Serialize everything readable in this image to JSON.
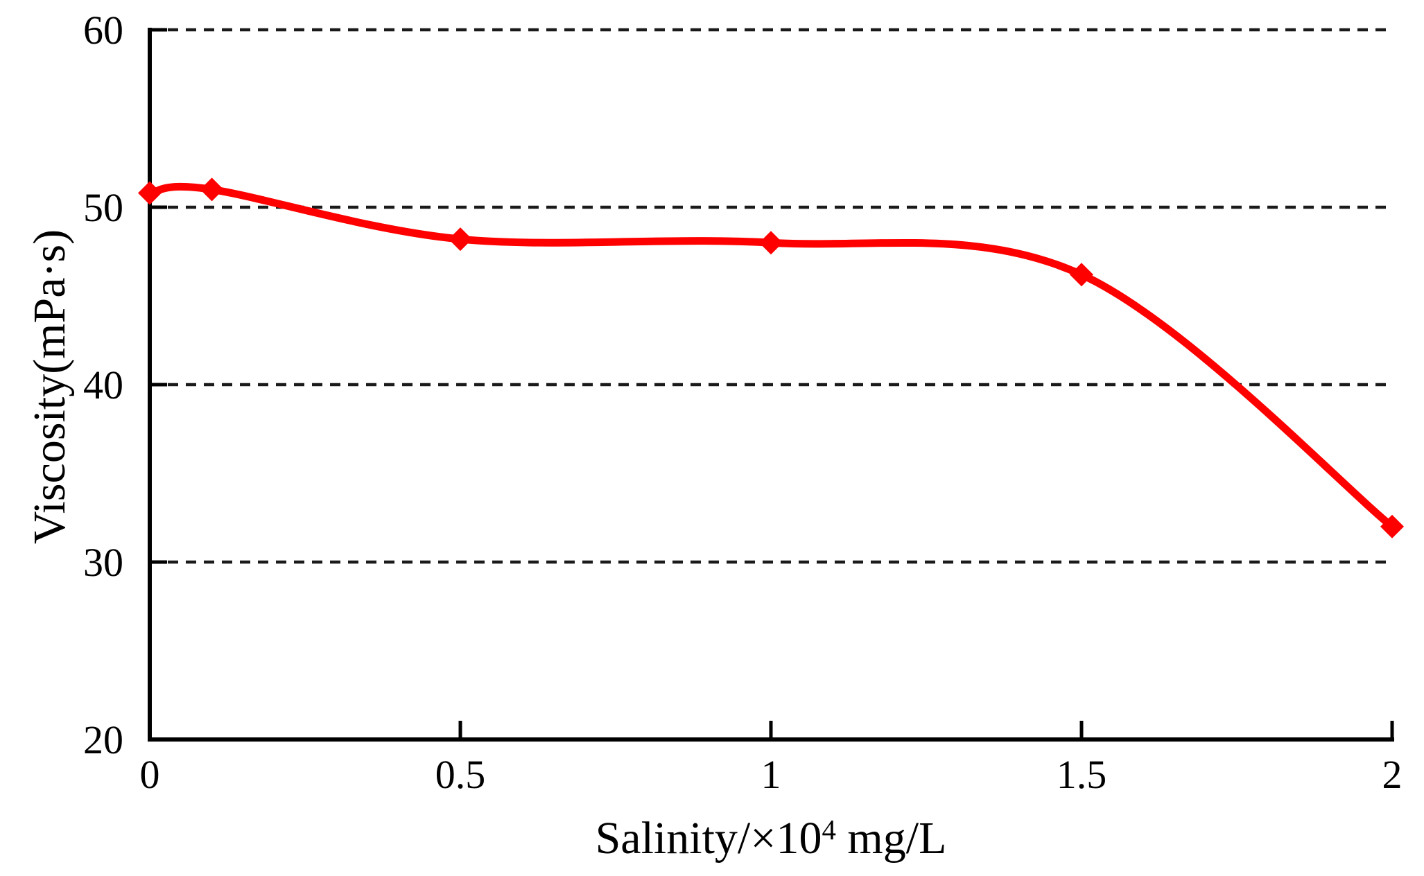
{
  "page": {
    "background": "#ffffff"
  },
  "chart_data": {
    "type": "line",
    "smooth": true,
    "title": "",
    "xlabel": "Salinity/×10⁴ mg/L",
    "xlabel_parts": {
      "prefix": "Salinity/×10",
      "superscript": "4",
      "suffix": " mg/L"
    },
    "ylabel": "Viscosity(mPa·s)",
    "x": [
      0,
      0.1,
      0.5,
      1,
      1.5,
      2
    ],
    "y": [
      50.8,
      51,
      48.2,
      48,
      46.2,
      32
    ],
    "xlim": [
      0,
      2
    ],
    "ylim": [
      20,
      60
    ],
    "xtick_values": [
      0,
      0.5,
      1,
      1.5,
      2
    ],
    "xtick_labels": [
      "0",
      "0.5",
      "1",
      "1.5",
      "2"
    ],
    "ytick_values": [
      20,
      30,
      40,
      50,
      60
    ],
    "ytick_labels": [
      "20",
      "30",
      "40",
      "50",
      "60"
    ],
    "gridlines": {
      "values": [
        30,
        40,
        50,
        60
      ],
      "style": "dashed",
      "color": "#1a1a1a"
    },
    "legend": "none",
    "line_color": "#ff0000",
    "marker": "diamond",
    "axis_color": "#000000"
  }
}
